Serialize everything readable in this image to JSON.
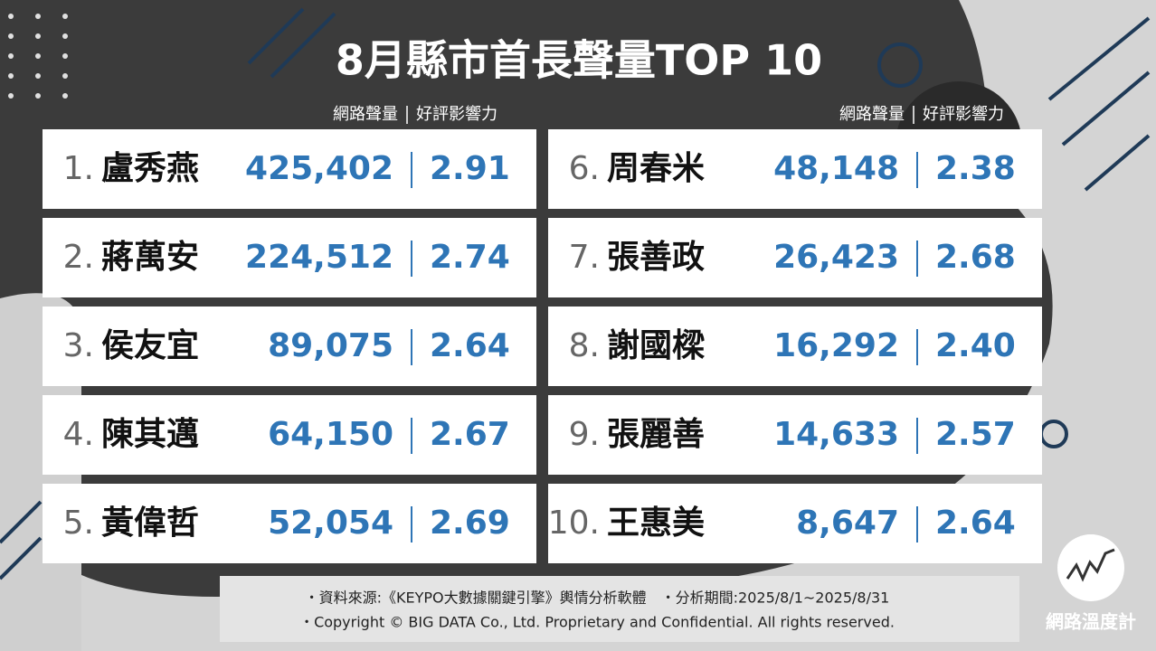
{
  "header": {
    "title": "8月縣市首長聲量TOP 10",
    "volume_label": "網路聲量",
    "score_label": "好評影響力"
  },
  "rankings": [
    {
      "rank": "1.",
      "name": "盧秀燕",
      "volume": "425,402",
      "score": "2.91"
    },
    {
      "rank": "2.",
      "name": "蔣萬安",
      "volume": "224,512",
      "score": "2.74"
    },
    {
      "rank": "3.",
      "name": "侯友宜",
      "volume": "89,075",
      "score": "2.64"
    },
    {
      "rank": "4.",
      "name": "陳其邁",
      "volume": "64,150",
      "score": "2.67"
    },
    {
      "rank": "5.",
      "name": "黃偉哲",
      "volume": "52,054",
      "score": "2.69"
    },
    {
      "rank": "6.",
      "name": "周春米",
      "volume": "48,148",
      "score": "2.38"
    },
    {
      "rank": "7.",
      "name": "張善政",
      "volume": "26,423",
      "score": "2.68"
    },
    {
      "rank": "8.",
      "name": "謝國樑",
      "volume": "16,292",
      "score": "2.40"
    },
    {
      "rank": "9.",
      "name": "張麗善",
      "volume": "14,633",
      "score": "2.57"
    },
    {
      "rank": "10.",
      "name": "王惠美",
      "volume": "8,647",
      "score": "2.64"
    }
  ],
  "footer": {
    "lines": [
      "・資料來源:《KEYPO大數據關鍵引擎》輿情分析軟體　・分析期間:2025/8/1~2025/8/31",
      "・Copyright © BIG DATA Co., Ltd. Proprietary and Confidential. All rights reserved."
    ]
  },
  "logo": {
    "text": "網路溫度計"
  }
}
